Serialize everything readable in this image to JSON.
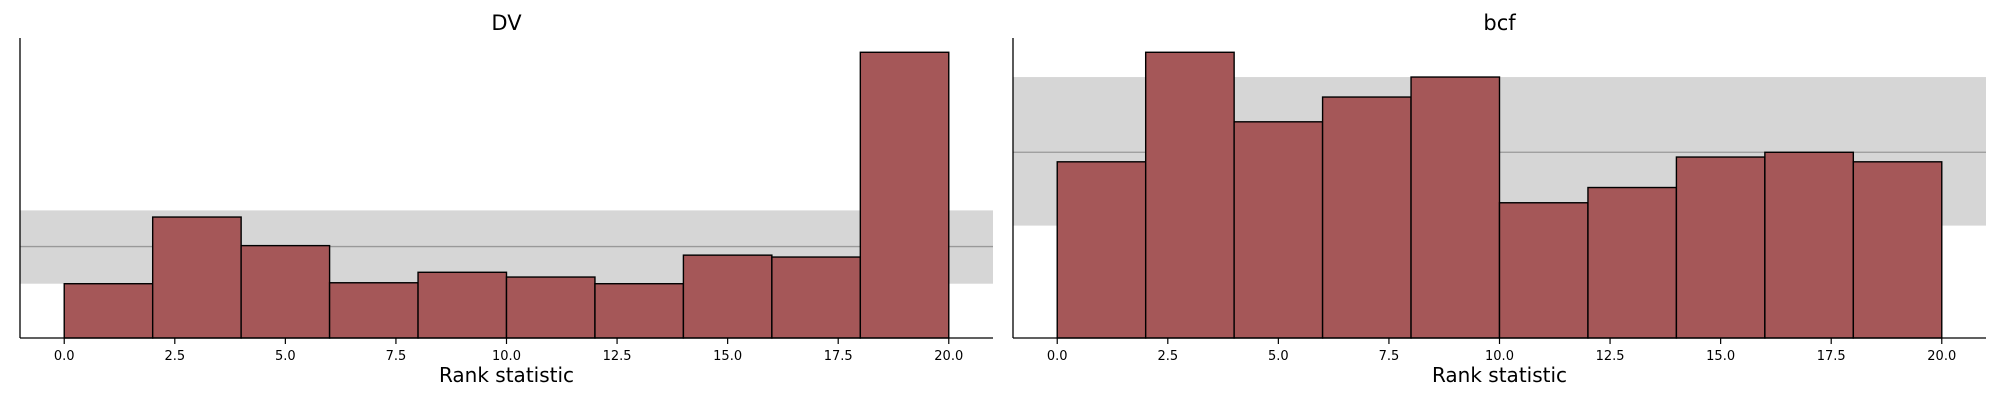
{
  "chart_data": [
    {
      "type": "bar",
      "title": "DV",
      "xlabel": "Rank statistic",
      "ylabel": "",
      "bin_edges": [
        0,
        2,
        4,
        6,
        8,
        10,
        12,
        14,
        16,
        18,
        20
      ],
      "values": [
        57,
        127,
        97,
        58,
        69,
        64,
        57,
        87,
        85,
        300
      ],
      "reference_band": {
        "low": 57,
        "center": 96,
        "high": 134
      },
      "xticks": [
        "0.0",
        "2.5",
        "5.0",
        "7.5",
        "10.0",
        "12.5",
        "15.0",
        "17.5",
        "20.0"
      ],
      "xlim": [
        -1,
        21
      ],
      "ylim": [
        0,
        315
      ],
      "grid": false,
      "colors": {
        "bar": "#a55758",
        "band": "#d6d6d6",
        "ref_line": "#999999"
      }
    },
    {
      "type": "bar",
      "title": "bcf",
      "xlabel": "Rank statistic",
      "ylabel": "",
      "bin_edges": [
        0,
        2,
        4,
        6,
        8,
        10,
        12,
        14,
        16,
        18,
        20
      ],
      "values": [
        185,
        300,
        227,
        253,
        274,
        142,
        158,
        190,
        195,
        185
      ],
      "reference_band": {
        "low": 118,
        "center": 195,
        "high": 274
      },
      "xticks": [
        "0.0",
        "2.5",
        "5.0",
        "7.5",
        "10.0",
        "12.5",
        "15.0",
        "17.5",
        "20.0"
      ],
      "xlim": [
        -1,
        21
      ],
      "ylim": [
        0,
        315
      ],
      "grid": false,
      "colors": {
        "bar": "#a55758",
        "band": "#d6d6d6",
        "ref_line": "#999999"
      }
    }
  ]
}
